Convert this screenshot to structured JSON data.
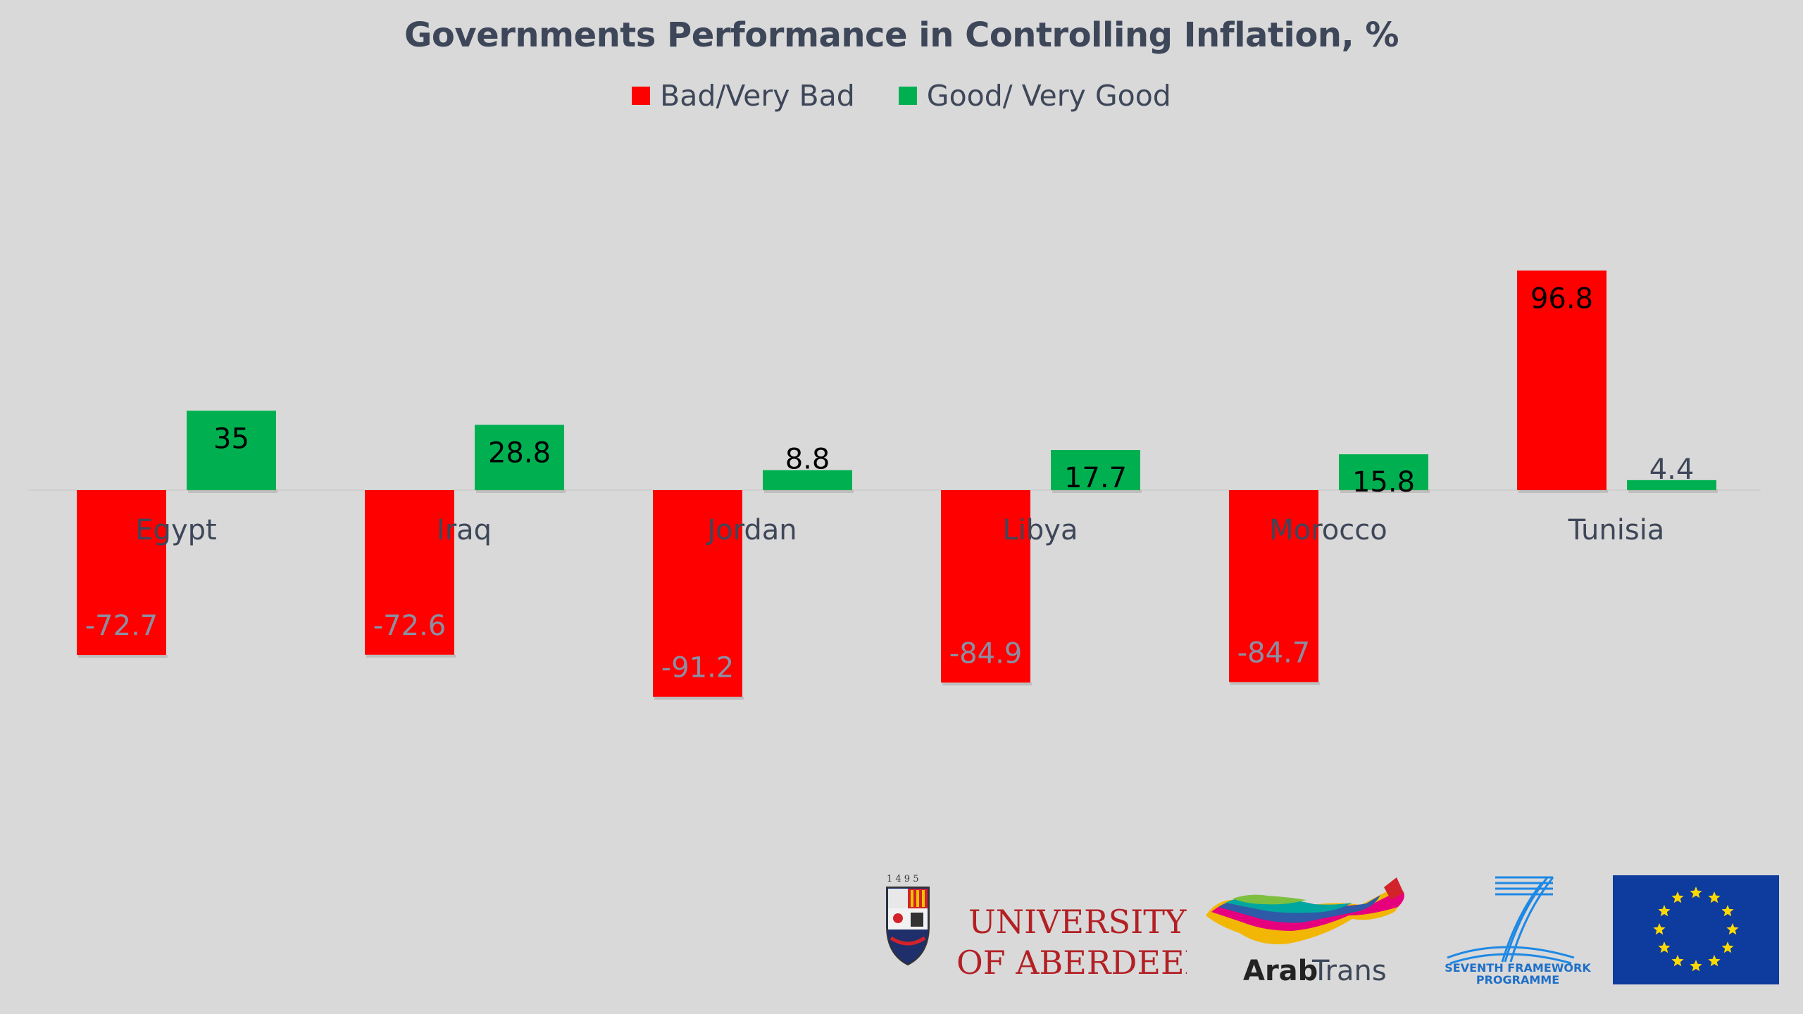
{
  "chart_data": {
    "type": "bar",
    "title": "Governments Performance in Controlling Inflation, %",
    "categories": [
      "Egypt",
      "Iraq",
      "Jordan",
      "Libya",
      "Morocco",
      "Tunisia"
    ],
    "series": [
      {
        "name": "Bad/Very Bad",
        "color": "#ff0000",
        "values": [
          -72.7,
          -72.6,
          -91.2,
          -84.9,
          -84.7,
          96.8
        ],
        "labels": [
          "-72.7",
          "-72.6",
          "-91.2",
          "-84.9",
          "-84.7",
          "96.8"
        ]
      },
      {
        "name": "Good/ Very Good",
        "color": "#00b050",
        "values": [
          35,
          28.8,
          8.8,
          17.7,
          15.8,
          4.4
        ],
        "labels": [
          "35",
          "28.8",
          "8.8",
          "17.7",
          "15.8",
          "4.4"
        ]
      }
    ],
    "legend_position": "top",
    "grid": false
  },
  "logos": {
    "aberdeen_year": "1 4 9 5",
    "aberdeen_line1": "UNIVERSITY",
    "aberdeen_line2": "OF ABERDEEN",
    "arabtrans_bold": "Arab",
    "arabtrans_light": "Trans",
    "fp7_line1": "SEVENTH FRAMEWORK",
    "fp7_line2": "PROGRAMME"
  }
}
